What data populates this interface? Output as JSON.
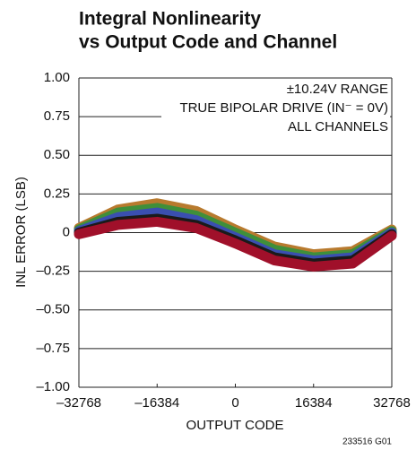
{
  "chart_data": {
    "type": "line",
    "title": "Integral Nonlinearity",
    "subtitle": "vs Output Code and Channel",
    "x_label": "OUTPUT CODE",
    "y_label": "INL ERROR (LSB)",
    "annotations": [
      "±10.24V RANGE",
      "TRUE BIPOLAR DRIVE (IN⁻ = 0V)",
      "ALL CHANNELS"
    ],
    "footnote": "233516 G01",
    "x": [
      -32768,
      -24576,
      -16384,
      -8192,
      0,
      8192,
      16384,
      24576,
      32768
    ],
    "series": [
      {
        "color": "#b87a2e",
        "values": [
          0.03,
          0.15,
          0.19,
          0.14,
          0.02,
          -0.09,
          -0.14,
          -0.12,
          0.02
        ]
      },
      {
        "color": "#3f8f3a",
        "values": [
          0.02,
          0.13,
          0.16,
          0.11,
          0.0,
          -0.11,
          -0.16,
          -0.14,
          0.01
        ]
      },
      {
        "color": "#3a4fb0",
        "values": [
          0.01,
          0.1,
          0.13,
          0.08,
          -0.03,
          -0.14,
          -0.18,
          -0.16,
          0.0
        ]
      },
      {
        "color": "#1a1a1a",
        "values": [
          0.0,
          0.07,
          0.09,
          0.05,
          -0.05,
          -0.16,
          -0.2,
          -0.18,
          -0.01
        ]
      },
      {
        "color": "#a0102a",
        "values": [
          -0.01,
          0.05,
          0.07,
          0.03,
          -0.07,
          -0.18,
          -0.22,
          -0.2,
          -0.02
        ]
      }
    ],
    "xlim": [
      -32768,
      32768
    ],
    "xticks": [
      {
        "value": -32768,
        "label": "–32768"
      },
      {
        "value": -16384,
        "label": "–16384"
      },
      0,
      16384,
      32768
    ],
    "ylim": [
      -1,
      1
    ],
    "yticks": [
      {
        "value": 1,
        "label": "1.00"
      },
      {
        "value": 0.75,
        "label": "0.75"
      },
      {
        "value": 0.5,
        "label": "0.50"
      },
      {
        "value": 0.25,
        "label": "0.25"
      },
      0,
      {
        "value": -0.25,
        "label": "–0.25"
      },
      {
        "value": -0.5,
        "label": "–0.50"
      },
      {
        "value": -0.75,
        "label": "–0.75"
      },
      {
        "value": -1,
        "label": "–1.00"
      }
    ],
    "grid": true
  }
}
